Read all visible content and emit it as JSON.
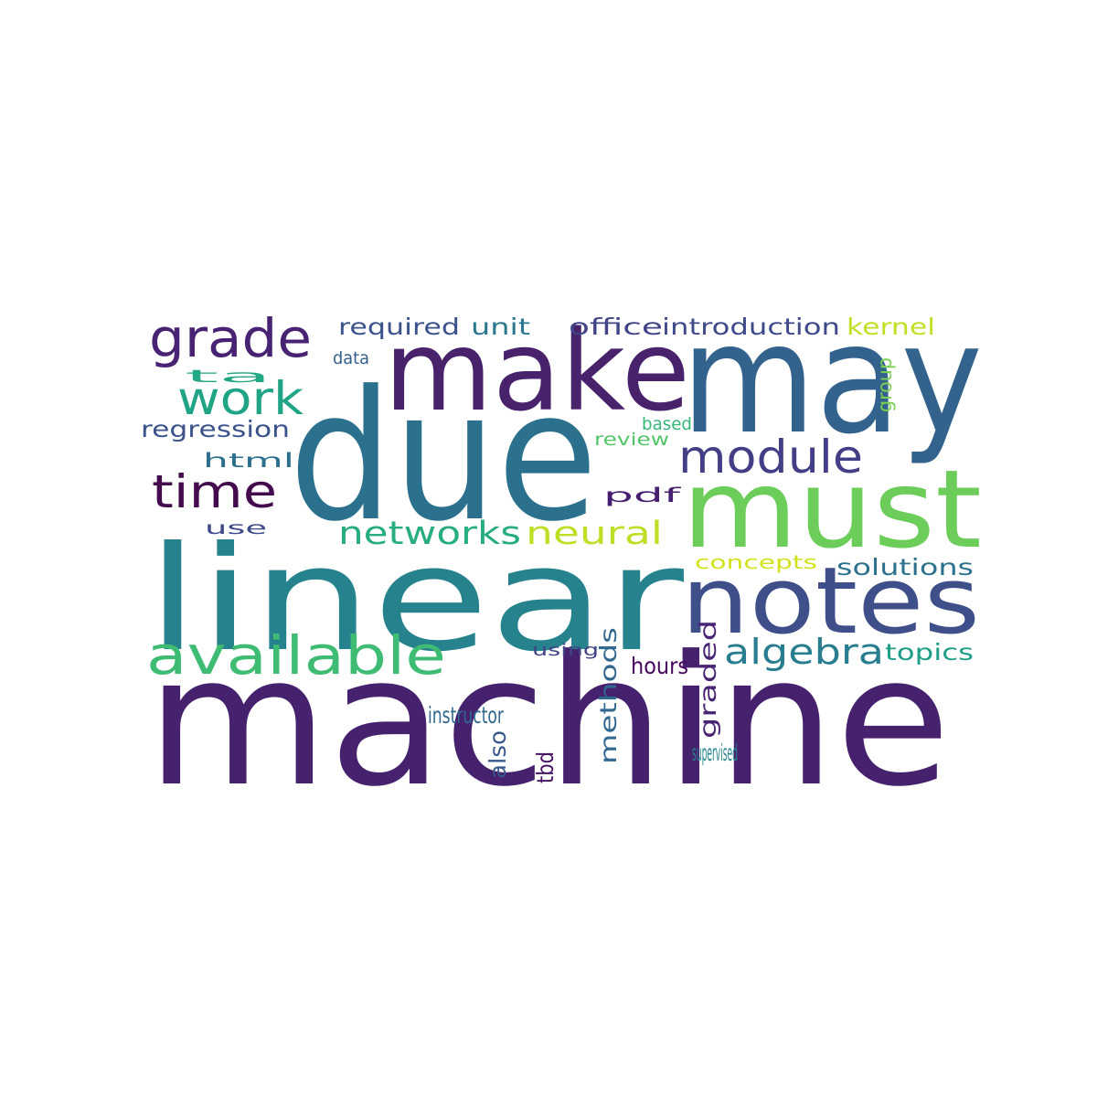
{
  "words": [
    {
      "text": "machine",
      "color": "#46226e"
    },
    {
      "text": "due",
      "color": "#2b718e"
    },
    {
      "text": "linear",
      "color": "#26838e"
    },
    {
      "text": "may",
      "color": "#33638d"
    },
    {
      "text": "make",
      "color": "#48226a"
    },
    {
      "text": "must",
      "color": "#6ccd5a"
    },
    {
      "text": "notes",
      "color": "#3f4f8a"
    },
    {
      "text": "available",
      "color": "#3fbc73"
    },
    {
      "text": "grade",
      "color": "#482374"
    },
    {
      "text": "module",
      "color": "#433e85"
    },
    {
      "text": "time",
      "color": "#440a4e"
    },
    {
      "text": "work",
      "color": "#20a486"
    },
    {
      "text": "algebra",
      "color": "#287d8e"
    },
    {
      "text": "networks",
      "color": "#27ad81"
    },
    {
      "text": "neural",
      "color": "#bddf26"
    },
    {
      "text": "solutions",
      "color": "#2c728e"
    },
    {
      "text": "required",
      "color": "#3b528b"
    },
    {
      "text": "unit",
      "color": "#2a788e"
    },
    {
      "text": "office",
      "color": "#414487"
    },
    {
      "text": "introduction",
      "color": "#3e4a89"
    },
    {
      "text": "kernel",
      "color": "#c2df23"
    },
    {
      "text": "topics",
      "color": "#1f9e89"
    },
    {
      "text": "regression",
      "color": "#3b528b"
    },
    {
      "text": "instructor",
      "color": "#31688e"
    },
    {
      "text": "concepts",
      "color": "#d2e21b"
    },
    {
      "text": "hours",
      "color": "#46085c"
    },
    {
      "text": "supervised",
      "color": "#25858e"
    },
    {
      "text": "html",
      "color": "#2d708e"
    },
    {
      "text": "pdf",
      "color": "#481f70"
    },
    {
      "text": "use",
      "color": "#3e4989"
    },
    {
      "text": "ta",
      "color": "#22a884"
    },
    {
      "text": "review",
      "color": "#52c569"
    },
    {
      "text": "based",
      "color": "#35b779"
    },
    {
      "text": "data",
      "color": "#355f8d"
    },
    {
      "text": "using",
      "color": "#414487"
    },
    {
      "text": "methods",
      "color": "#31688e"
    },
    {
      "text": "graded",
      "color": "#482475"
    },
    {
      "text": "also",
      "color": "#38588c"
    },
    {
      "text": "tbd",
      "color": "#471365"
    },
    {
      "text": "group",
      "color": "#7ad151"
    }
  ]
}
